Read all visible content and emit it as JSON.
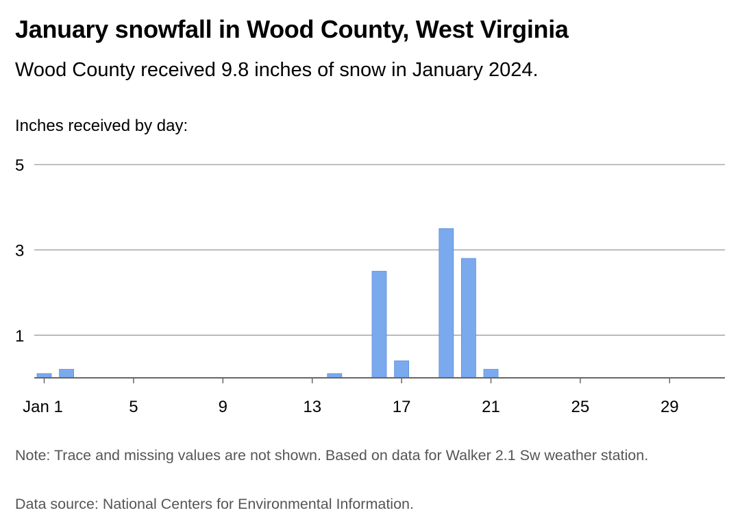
{
  "header": {
    "title": "January snowfall in Wood County, West Virginia",
    "subtitle": "Wood County received 9.8 inches of snow in January 2024.",
    "y_caption": "Inches received by day:"
  },
  "footer": {
    "note": "Note: Trace and missing values are not shown. Based on data for Walker 2.1 Sw weather station.",
    "source": "Data source: National Centers for Environmental Information."
  },
  "colors": {
    "bar": "#7aa9ee",
    "bar_stroke": "#5b8fd9",
    "gridline": "#aaaaaa",
    "baseline": "#666666",
    "text": "#000000",
    "footnote": "#555555"
  },
  "chart_data": {
    "type": "bar",
    "title": "January snowfall in Wood County, West Virginia",
    "ylabel": "Inches received by day:",
    "xlabel": "",
    "xlim": [
      1,
      31
    ],
    "ylim": [
      0,
      5
    ],
    "grid": true,
    "yticks": [
      1,
      3,
      5
    ],
    "xticks": [
      1,
      5,
      9,
      13,
      17,
      21,
      25,
      29
    ],
    "xtick_labels": [
      "Jan 1",
      "5",
      "9",
      "13",
      "17",
      "21",
      "25",
      "29"
    ],
    "days": [
      1,
      2,
      14,
      16,
      17,
      19,
      20,
      21
    ],
    "values": [
      0.1,
      0.2,
      0.1,
      2.5,
      0.4,
      3.5,
      2.8,
      0.2
    ]
  }
}
